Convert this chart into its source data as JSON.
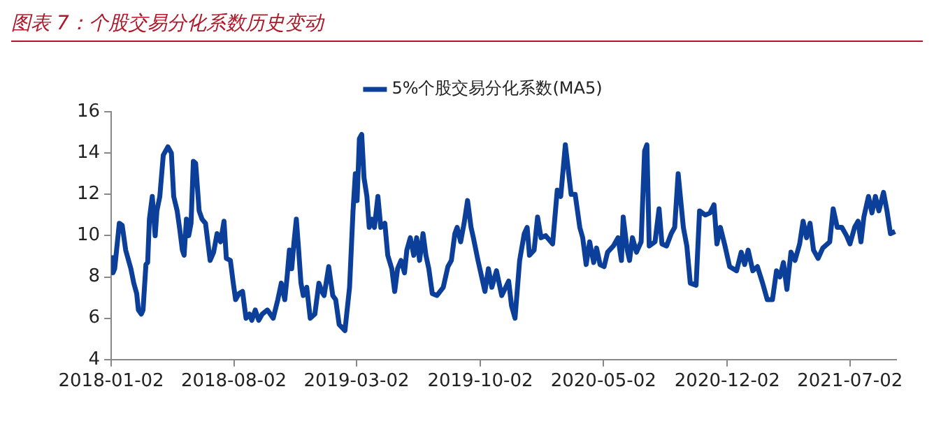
{
  "chart_data": {
    "type": "line",
    "title": "图表 7：个股交易分化系数历史变动",
    "x": [
      "2018-01-03",
      "2018-01-05",
      "2018-01-08",
      "2018-01-16",
      "2018-01-21",
      "2018-01-27",
      "2018-02-05",
      "2018-02-10",
      "2018-02-15",
      "2018-02-18",
      "2018-02-23",
      "2018-02-26",
      "2018-03-03",
      "2018-03-06",
      "2018-03-09",
      "2018-03-14",
      "2018-03-19",
      "2018-03-22",
      "2018-03-27",
      "2018-04-02",
      "2018-04-10",
      "2018-04-16",
      "2018-04-20",
      "2018-04-26",
      "2018-04-30",
      "2018-05-05",
      "2018-05-08",
      "2018-05-12",
      "2018-05-16",
      "2018-05-20",
      "2018-05-24",
      "2018-05-28",
      "2018-06-03",
      "2018-06-08",
      "2018-06-14",
      "2018-06-22",
      "2018-06-28",
      "2018-07-04",
      "2018-07-10",
      "2018-07-16",
      "2018-07-20",
      "2018-07-27",
      "2018-08-01",
      "2018-08-05",
      "2018-08-11",
      "2018-08-17",
      "2018-08-23",
      "2018-08-29",
      "2018-09-02",
      "2018-09-08",
      "2018-09-14",
      "2018-09-20",
      "2018-09-29",
      "2018-10-09",
      "2018-10-17",
      "2018-10-23",
      "2018-10-29",
      "2018-11-02",
      "2018-11-06",
      "2018-11-10",
      "2018-11-14",
      "2018-11-18",
      "2018-11-22",
      "2018-11-26",
      "2018-11-30",
      "2018-12-06",
      "2018-12-12",
      "2018-12-20",
      "2018-12-27",
      "2019-01-01",
      "2019-01-05",
      "2019-01-13",
      "2019-01-20",
      "2019-01-25",
      "2019-01-31",
      "2019-02-10",
      "2019-02-18",
      "2019-02-24",
      "2019-02-28",
      "2019-03-03",
      "2019-03-07",
      "2019-03-11",
      "2019-03-15",
      "2019-03-20",
      "2019-03-24",
      "2019-03-29",
      "2019-04-02",
      "2019-04-08",
      "2019-04-13",
      "2019-04-20",
      "2019-04-25",
      "2019-05-02",
      "2019-05-07",
      "2019-05-12",
      "2019-05-18",
      "2019-05-24",
      "2019-05-28",
      "2019-06-03",
      "2019-06-09",
      "2019-06-14",
      "2019-06-19",
      "2019-06-25",
      "2019-06-30",
      "2019-07-05",
      "2019-07-11",
      "2019-07-19",
      "2019-07-30",
      "2019-08-07",
      "2019-08-13",
      "2019-08-19",
      "2019-08-23",
      "2019-08-29",
      "2019-09-04",
      "2019-09-10",
      "2019-09-16",
      "2019-09-20",
      "2019-09-28",
      "2019-10-10",
      "2019-10-16",
      "2019-10-22",
      "2019-10-30",
      "2019-11-08",
      "2019-11-20",
      "2019-11-25",
      "2019-12-01",
      "2019-12-09",
      "2019-12-17",
      "2019-12-22",
      "2019-12-26",
      "2020-01-03",
      "2020-01-09",
      "2020-01-15",
      "2020-01-23",
      "2020-02-04",
      "2020-02-12",
      "2020-02-18",
      "2020-02-26",
      "2020-03-07",
      "2020-03-14",
      "2020-03-22",
      "2020-03-27",
      "2020-04-02",
      "2020-04-08",
      "2020-04-15",
      "2020-04-20",
      "2020-04-26",
      "2020-05-03",
      "2020-05-09",
      "2020-05-19",
      "2020-05-27",
      "2020-06-02",
      "2020-06-05",
      "2020-06-12",
      "2020-06-16",
      "2020-06-21",
      "2020-06-28",
      "2020-07-06",
      "2020-07-12",
      "2020-07-16",
      "2020-07-20",
      "2020-07-30",
      "2020-08-06",
      "2020-08-11",
      "2020-08-19",
      "2020-08-27",
      "2020-09-02",
      "2020-09-08",
      "2020-09-17",
      "2020-09-23",
      "2020-09-29",
      "2020-10-09",
      "2020-10-15",
      "2020-10-25",
      "2020-11-02",
      "2020-11-09",
      "2020-11-14",
      "2020-11-20",
      "2020-11-28",
      "2020-12-06",
      "2020-12-18",
      "2020-12-26",
      "2021-01-01",
      "2021-01-07",
      "2021-01-15",
      "2021-01-23",
      "2021-02-01",
      "2021-02-09",
      "2021-02-18",
      "2021-02-25",
      "2021-03-03",
      "2021-03-09",
      "2021-03-15",
      "2021-03-22",
      "2021-03-29",
      "2021-04-06",
      "2021-04-12",
      "2021-04-18",
      "2021-04-24",
      "2021-04-30",
      "2021-05-08",
      "2021-05-16",
      "2021-05-28",
      "2021-06-03",
      "2021-06-10",
      "2021-06-18",
      "2021-06-26",
      "2021-07-02",
      "2021-07-10",
      "2021-07-16",
      "2021-07-21",
      "2021-07-26",
      "2021-08-03",
      "2021-08-09",
      "2021-08-15",
      "2021-08-21",
      "2021-08-29",
      "2021-09-04",
      "2021-09-10",
      "2021-09-18"
    ],
    "series": [
      {
        "name": "5%个股交易分化系数(MA5)",
        "color": "#0b3f9a",
        "values": [
          9.05,
          8.2,
          8.4,
          10.6,
          10.5,
          9.3,
          8.4,
          7.7,
          7.2,
          6.4,
          6.2,
          6.4,
          8.6,
          8.7,
          10.8,
          11.9,
          10.0,
          11.2,
          11.9,
          13.9,
          14.3,
          14.0,
          11.9,
          11.2,
          10.4,
          9.3,
          9.05,
          10.8,
          10.0,
          10.6,
          13.6,
          13.5,
          11.2,
          10.8,
          10.6,
          8.8,
          9.2,
          10.1,
          9.7,
          10.7,
          8.9,
          8.8,
          7.7,
          6.9,
          7.2,
          7.3,
          6.0,
          6.2,
          5.9,
          6.4,
          5.9,
          6.2,
          6.4,
          6.0,
          6.9,
          7.7,
          6.9,
          8.0,
          9.3,
          8.4,
          9.7,
          10.8,
          9.3,
          7.7,
          7.1,
          7.5,
          6.0,
          6.2,
          7.7,
          7.3,
          7.1,
          8.5,
          7.1,
          6.9,
          5.7,
          5.4,
          7.5,
          11.2,
          13.0,
          11.7,
          14.7,
          14.9,
          12.8,
          11.9,
          10.4,
          10.8,
          10.4,
          11.9,
          10.4,
          10.6,
          9.05,
          8.4,
          7.3,
          8.4,
          8.8,
          8.2,
          9.3,
          9.9,
          9.05,
          9.9,
          8.8,
          10.1,
          9.05,
          8.4,
          7.2,
          7.1,
          7.5,
          8.5,
          8.8,
          10.1,
          10.4,
          9.7,
          10.6,
          11.7,
          10.4,
          9.9,
          8.8,
          7.3,
          8.4,
          7.5,
          8.3,
          7.1,
          7.8,
          6.6,
          6.0,
          8.8,
          10.1,
          10.4,
          9.05,
          9.3,
          10.9,
          9.9,
          10.0,
          9.6,
          12.2,
          11.9,
          14.4,
          12.0,
          12.0,
          10.4,
          9.9,
          8.6,
          9.7,
          8.7,
          9.4,
          8.6,
          8.5,
          9.2,
          9.5,
          9.9,
          8.8,
          10.9,
          9.3,
          8.8,
          9.9,
          9.2,
          9.7,
          14.1,
          14.4,
          9.5,
          9.7,
          11.3,
          9.6,
          9.5,
          10.1,
          10.4,
          13.0,
          10.4,
          9.5,
          7.7,
          7.6,
          11.2,
          11.0,
          11.1,
          11.5,
          9.6,
          10.4,
          9.5,
          8.5,
          8.3,
          9.2,
          8.6,
          9.3,
          8.3,
          8.5,
          7.7,
          6.9,
          6.9,
          8.3,
          8.0,
          8.7,
          7.4,
          9.2,
          8.8,
          9.6,
          10.7,
          9.9,
          10.6,
          9.3,
          8.9,
          9.4,
          9.7,
          11.3,
          10.4,
          10.4,
          10.0,
          9.6,
          10.4,
          10.7,
          9.7,
          10.9,
          11.9,
          11.1,
          11.9,
          11.2,
          12.1,
          11.2,
          10.1,
          10.2
        ]
      }
    ],
    "xlim": [
      "2018-01-02",
      "2021-09-20"
    ],
    "xticks": [
      "2018-01-02",
      "2018-08-02",
      "2019-03-02",
      "2019-10-02",
      "2020-05-02",
      "2020-12-02",
      "2021-07-02"
    ],
    "ylim": [
      4,
      16
    ],
    "yticks": [
      4,
      6,
      8,
      10,
      12,
      14,
      16
    ],
    "legend": "top",
    "marker": "none",
    "line_style": "solid"
  }
}
